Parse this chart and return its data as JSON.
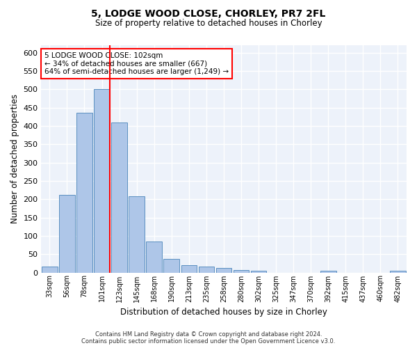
{
  "title1": "5, LODGE WOOD CLOSE, CHORLEY, PR7 2FL",
  "title2": "Size of property relative to detached houses in Chorley",
  "xlabel": "Distribution of detached houses by size in Chorley",
  "ylabel": "Number of detached properties",
  "categories": [
    "33sqm",
    "56sqm",
    "78sqm",
    "101sqm",
    "123sqm",
    "145sqm",
    "168sqm",
    "190sqm",
    "213sqm",
    "235sqm",
    "258sqm",
    "280sqm",
    "302sqm",
    "325sqm",
    "347sqm",
    "370sqm",
    "392sqm",
    "415sqm",
    "437sqm",
    "460sqm",
    "482sqm"
  ],
  "values": [
    17,
    212,
    435,
    500,
    410,
    208,
    84,
    37,
    20,
    17,
    12,
    7,
    5,
    0,
    0,
    0,
    5,
    0,
    0,
    0,
    5
  ],
  "bar_color": "#aec6e8",
  "bar_edge_color": "#5a8fc0",
  "bg_color": "#edf2fa",
  "grid_color": "#ffffff",
  "red_line_index": 3,
  "annotation_text": "5 LODGE WOOD CLOSE: 102sqm\n← 34% of detached houses are smaller (667)\n64% of semi-detached houses are larger (1,249) →",
  "ylim": [
    0,
    620
  ],
  "yticks": [
    0,
    50,
    100,
    150,
    200,
    250,
    300,
    350,
    400,
    450,
    500,
    550,
    600
  ],
  "footer1": "Contains HM Land Registry data © Crown copyright and database right 2024.",
  "footer2": "Contains public sector information licensed under the Open Government Licence v3.0."
}
